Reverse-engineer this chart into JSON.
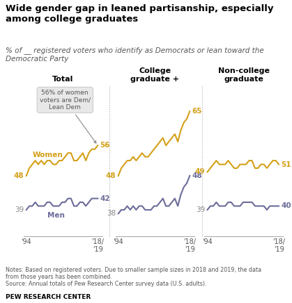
{
  "title": "Wide gender gap in leaned partisanship, especially\namong college graduates",
  "subtitle": "% of __ registered voters who identify as Democrats or lean toward the\nDemocratic Party",
  "notes": "Notes: Based on registered voters. Due to smaller sample sizes in 2018 and 2019, the data\nfrom those years has been combined.\nSource: Annual totals of Pew Research Center survey data (U.S. adults).",
  "source_label": "PEW RESEARCH CENTER",
  "panel_titles": [
    "Total",
    "College\ngraduate +",
    "Non-college\ngraduate"
  ],
  "years": [
    1994,
    1995,
    1996,
    1997,
    1998,
    1999,
    2000,
    2001,
    2002,
    2003,
    2004,
    2005,
    2006,
    2007,
    2008,
    2009,
    2010,
    2011,
    2012,
    2013,
    2014,
    2015,
    2016,
    2017,
    2018
  ],
  "total_women": [
    48,
    50,
    51,
    52,
    51,
    52,
    51,
    52,
    52,
    51,
    51,
    52,
    52,
    53,
    54,
    54,
    52,
    52,
    53,
    54,
    52,
    54,
    55,
    55,
    56
  ],
  "total_men": [
    39,
    40,
    40,
    41,
    40,
    40,
    40,
    41,
    41,
    40,
    40,
    40,
    41,
    41,
    42,
    42,
    40,
    40,
    41,
    41,
    40,
    41,
    42,
    42,
    42
  ],
  "college_women": [
    48,
    50,
    51,
    52,
    52,
    53,
    52,
    53,
    54,
    53,
    53,
    54,
    55,
    56,
    57,
    58,
    56,
    57,
    58,
    59,
    57,
    60,
    62,
    63,
    65
  ],
  "college_men": [
    38,
    39,
    39,
    40,
    39,
    40,
    39,
    40,
    40,
    39,
    39,
    39,
    40,
    40,
    41,
    42,
    40,
    40,
    41,
    42,
    40,
    43,
    45,
    46,
    48
  ],
  "noncollege_women": [
    49,
    50,
    51,
    52,
    51,
    51,
    51,
    52,
    51,
    50,
    50,
    51,
    51,
    51,
    52,
    52,
    50,
    50,
    51,
    51,
    50,
    51,
    52,
    52,
    51
  ],
  "noncollege_men": [
    39,
    40,
    40,
    41,
    40,
    40,
    40,
    41,
    41,
    40,
    40,
    40,
    41,
    41,
    41,
    41,
    40,
    40,
    40,
    40,
    39,
    40,
    40,
    40,
    40
  ],
  "women_color": "#D4A017",
  "men_color": "#6B6B9A",
  "annotation_box_color": "#E8E8E8",
  "ylim": [
    32,
    72
  ],
  "start_labels": {
    "total_women": 48,
    "total_men": 39,
    "college_women": 48,
    "college_men": 38,
    "noncollege_women": 49,
    "noncollege_men": 39
  },
  "end_labels": {
    "total_women": 56,
    "total_men": 42,
    "college_women": 65,
    "college_men": 48,
    "noncollege_women": 51,
    "noncollege_men": 40
  }
}
